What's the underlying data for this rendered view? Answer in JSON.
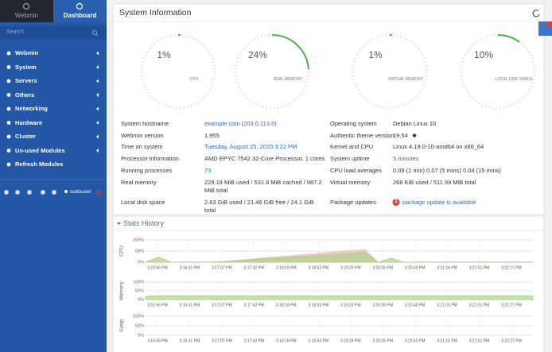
{
  "sidebar": {
    "tabs": [
      "Webmin",
      "Dashboard"
    ],
    "search_placeholder": "Search",
    "menu": [
      "Webmin",
      "System",
      "Servers",
      "Others",
      "Networking",
      "Hardware",
      "Cluster",
      "Un-used Modules"
    ],
    "refresh": "Refresh Modules",
    "user": "sudouser"
  },
  "system_information": {
    "title": "System Information",
    "gauges": [
      {
        "label": "CPU",
        "value": 1,
        "value_label": "1%"
      },
      {
        "label": "REAL MEMORY",
        "value": 24,
        "value_label": "24%"
      },
      {
        "label": "VIRTUAL MEMORY",
        "value": 1,
        "value_label": "1%"
      },
      {
        "label": "LOCAL DISK SPACE",
        "value": 10,
        "value_label": "10%"
      }
    ],
    "left": [
      {
        "label": "System hostname",
        "value": "example.com (203.0.113.0)",
        "link": true
      },
      {
        "label": "Webmin version",
        "value": "1.955"
      },
      {
        "label": "Time on system",
        "value": "Tuesday, August 25, 2020 3:22 PM",
        "link": true
      },
      {
        "label": "Processor information",
        "value": "AMD EPYC 7542 32-Core Processor, 1 cores"
      },
      {
        "label": "Running processes",
        "value": "73",
        "link": true
      },
      {
        "label": "Real memory",
        "value": "228.18 MiB used / 531.8 MiB cached / 987.2 MiB total"
      },
      {
        "label": "Local disk space",
        "value": "2.63 GiB used / 21.46 GiB free / 24.1 GiB total"
      }
    ],
    "right": [
      {
        "label": "Operating system",
        "value": "Debian Linux 10"
      },
      {
        "label": "Authentic theme version",
        "value": "19.54",
        "info": true
      },
      {
        "label": "Kernel and CPU",
        "value": "Linux 4.19.0-10-amd64 on x86_64"
      },
      {
        "label": "System uptime",
        "value": "5 minutes",
        "link": true
      },
      {
        "label": "CPU load averages",
        "value": "0.09 (1 min) 0.07 (5 mins) 0.04 (15 mins)"
      },
      {
        "label": "Virtual memory",
        "value": "268 KiB used / 511.99 MiB total"
      },
      {
        "label": "Package updates",
        "badge": "1",
        "value": "package update is available",
        "link": true
      }
    ]
  },
  "stats_history": {
    "title": "Stats History",
    "ylim": [
      0,
      100
    ],
    "yticks": [
      {
        "value": 100,
        "label": "100%"
      },
      {
        "value": 50,
        "label": "50%"
      },
      {
        "value": 0,
        "label": "0%"
      }
    ],
    "xtick_labels": [
      "3:15:56 PM",
      "3:16:31 PM",
      "3:17:07 PM",
      "3:17:42 PM",
      "3:18:18 PM",
      "3:18:53 PM",
      "3:19:29 PM",
      "3:20:05 PM",
      "3:20:40 PM",
      "3:21:16 PM",
      "3:21:51 PM",
      "3:22:27 PM"
    ],
    "charts": [
      {
        "name": "CPU",
        "series": [
          {
            "color": "#f4b6b6",
            "values": [
              0,
              0,
              0,
              0,
              0,
              0,
              3,
              8,
              13,
              18,
              23,
              28,
              33,
              38,
              43,
              48,
              52,
              56,
              0,
              0,
              0,
              0,
              0,
              0,
              0,
              0,
              0,
              0,
              0,
              0,
              0
            ]
          },
          {
            "color": "#a5d17f",
            "values": [
              0,
              22,
              0,
              1,
              1,
              1,
              2,
              6,
              10,
              14,
              18,
              22,
              26,
              30,
              34,
              38,
              42,
              46,
              0,
              18,
              0,
              1,
              1,
              1,
              1,
              1,
              1,
              1,
              1,
              1,
              1
            ]
          }
        ]
      },
      {
        "name": "Memory",
        "series": [
          {
            "color": "#a5d17f",
            "values": [
              18,
              22,
              22,
              22,
              22,
              22,
              22,
              22,
              22,
              22,
              22,
              22,
              22,
              22,
              22,
              22,
              22,
              22,
              22,
              22,
              22,
              22,
              22,
              22,
              22,
              22,
              22,
              22,
              22,
              22,
              22
            ]
          }
        ]
      },
      {
        "name": "Swap",
        "series": []
      }
    ]
  }
}
